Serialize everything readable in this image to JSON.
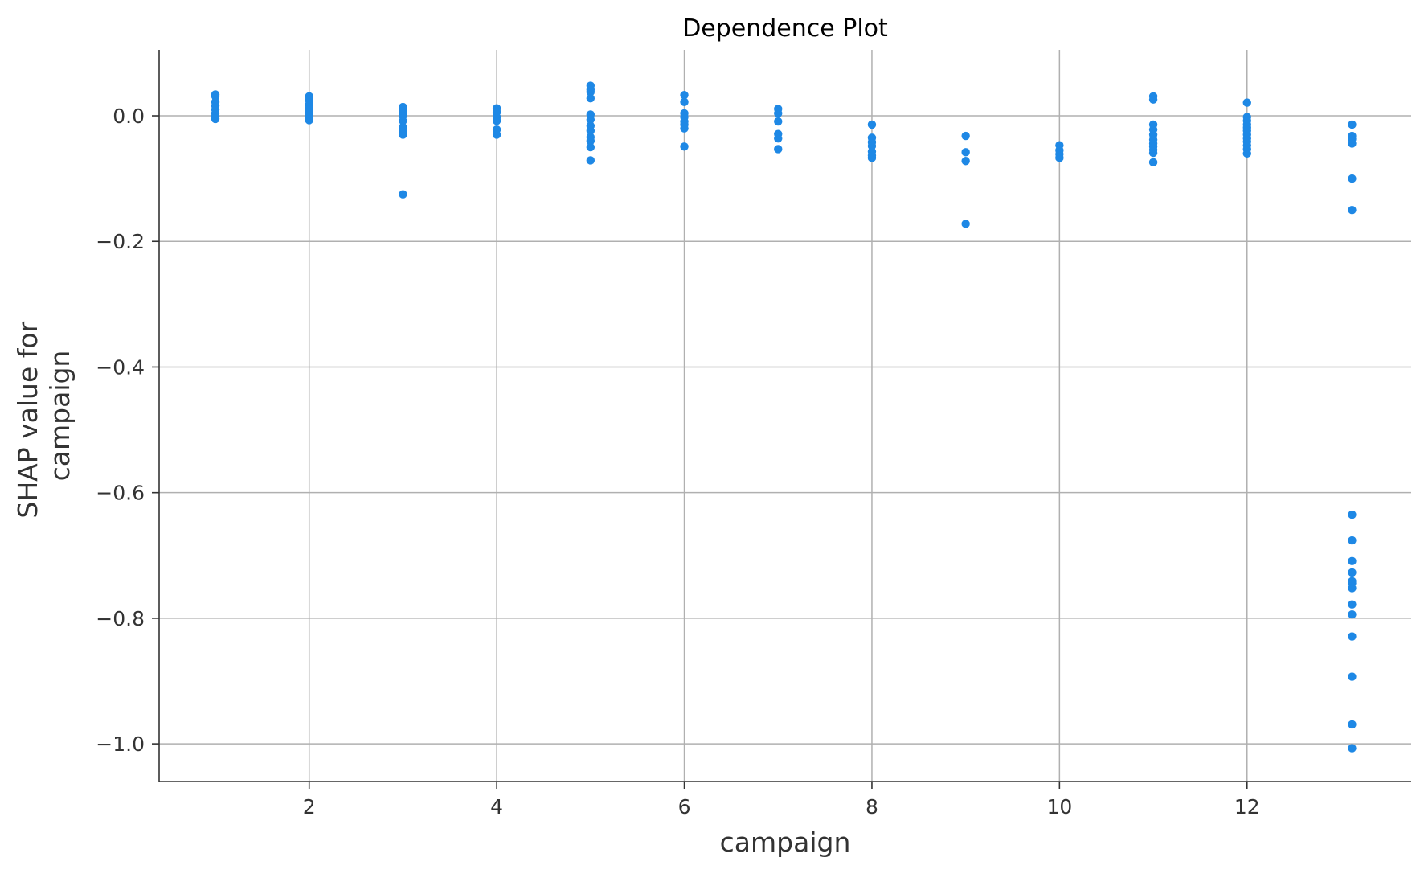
{
  "chart_data": {
    "type": "scatter",
    "title": "Dependence Plot",
    "xlabel": "campaign",
    "ylabel": "SHAP value for\ncampaign",
    "xlim": [
      0.4,
      13.75
    ],
    "ylim": [
      -1.06,
      0.105
    ],
    "xticks": [
      2,
      4,
      6,
      8,
      10,
      12
    ],
    "yticks": [
      0.0,
      -0.2,
      -0.4,
      -0.6,
      -0.8,
      -1.0
    ],
    "xtick_labels": [
      "2",
      "4",
      "6",
      "8",
      "10",
      "12"
    ],
    "ytick_labels": [
      "0.0",
      "−0.2",
      "−0.4",
      "−0.6",
      "−0.8",
      "−1.0"
    ],
    "grid": true,
    "point_color": "#1e88e5",
    "series": [
      {
        "x": [
          1,
          1,
          1,
          1,
          1,
          1,
          1,
          1,
          2,
          2,
          2,
          2,
          2,
          2,
          2,
          2,
          3,
          3,
          3,
          3,
          3,
          3,
          3,
          3,
          3,
          4,
          4,
          4,
          4,
          4,
          4,
          5,
          5,
          5,
          5,
          5,
          5,
          5,
          5,
          5,
          5,
          5,
          5,
          6,
          6,
          6,
          6,
          6,
          6,
          6,
          6,
          7,
          7,
          7,
          7,
          7,
          7,
          8,
          8,
          8,
          8,
          8,
          8,
          8,
          9,
          9,
          9,
          9,
          10,
          10,
          10,
          10,
          11,
          11,
          11,
          11,
          11,
          11,
          11,
          11,
          11,
          11,
          11,
          12,
          12,
          12,
          12,
          12,
          12,
          12,
          12,
          12,
          12,
          12,
          12,
          13.12,
          13.12,
          13.12,
          13.12,
          13.12,
          13.12,
          13.12,
          13.12,
          13.12,
          13.12,
          13.12,
          13.12,
          13.12,
          13.12,
          13.12,
          13.12,
          13.12,
          13.12,
          13.12
        ],
        "y": [
          0.034,
          0.031,
          0.022,
          0.016,
          0.01,
          0.004,
          -0.001,
          -0.005,
          0.031,
          0.025,
          0.018,
          0.012,
          0.007,
          0.002,
          -0.003,
          -0.007,
          0.014,
          0.01,
          0.006,
          0.0,
          -0.008,
          -0.018,
          -0.025,
          -0.03,
          -0.125,
          0.012,
          0.006,
          -0.002,
          -0.008,
          -0.022,
          -0.03,
          0.048,
          0.042,
          0.038,
          0.028,
          0.002,
          -0.006,
          -0.016,
          -0.024,
          -0.034,
          -0.04,
          -0.05,
          -0.071,
          0.033,
          0.022,
          0.004,
          -0.002,
          -0.009,
          -0.014,
          -0.02,
          -0.049,
          0.011,
          0.004,
          -0.009,
          -0.029,
          -0.036,
          -0.053,
          -0.014,
          -0.035,
          -0.042,
          -0.048,
          -0.057,
          -0.063,
          -0.067,
          -0.032,
          -0.058,
          -0.072,
          -0.172,
          -0.047,
          -0.055,
          -0.061,
          -0.067,
          0.031,
          0.026,
          -0.014,
          -0.022,
          -0.03,
          -0.038,
          -0.044,
          -0.049,
          -0.054,
          -0.059,
          -0.074,
          0.021,
          -0.002,
          -0.008,
          -0.014,
          -0.019,
          -0.024,
          -0.03,
          -0.036,
          -0.041,
          -0.047,
          -0.053,
          -0.06,
          -0.014,
          -0.032,
          -0.037,
          -0.044,
          -0.1,
          -0.15,
          -0.635,
          -0.676,
          -0.709,
          -0.727,
          -0.741,
          -0.752,
          -0.778,
          -0.794,
          -0.829,
          -0.893,
          -0.969,
          -1.007,
          -0.744
        ]
      }
    ]
  }
}
